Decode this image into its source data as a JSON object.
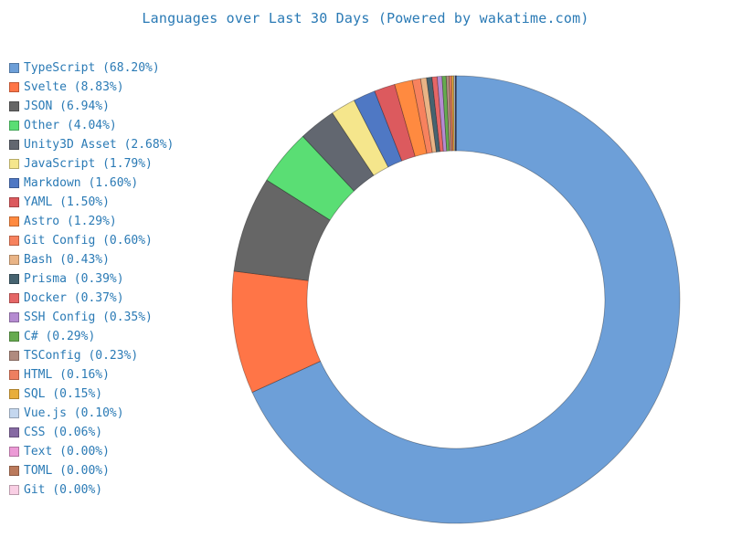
{
  "title": "Languages over Last 30 Days (Powered by wakatime.com)",
  "chart_data": {
    "type": "pie",
    "style": "donut",
    "legend_placement": "left",
    "slices": [
      {
        "label": "TypeScript (68.20%)",
        "name": "TypeScript",
        "value": 68.2,
        "color": "#6d9fd8"
      },
      {
        "label": "Svelte (8.83%)",
        "name": "Svelte",
        "value": 8.83,
        "color": "#ff7547"
      },
      {
        "label": "JSON (6.94%)",
        "name": "JSON",
        "value": 6.94,
        "color": "#666666"
      },
      {
        "label": "Other (4.04%)",
        "name": "Other",
        "value": 4.04,
        "color": "#5ade74"
      },
      {
        "label": "Unity3D Asset (2.68%)",
        "name": "Unity3D Asset",
        "value": 2.68,
        "color": "#626770"
      },
      {
        "label": "JavaScript (1.79%)",
        "name": "JavaScript",
        "value": 1.79,
        "color": "#f5e68c"
      },
      {
        "label": "Markdown (1.60%)",
        "name": "Markdown",
        "value": 1.6,
        "color": "#4f78c4"
      },
      {
        "label": "YAML (1.50%)",
        "name": "YAML",
        "value": 1.5,
        "color": "#dc5a5e"
      },
      {
        "label": "Astro (1.29%)",
        "name": "Astro",
        "value": 1.29,
        "color": "#ff8a40"
      },
      {
        "label": "Git Config (0.60%)",
        "name": "Git Config",
        "value": 0.6,
        "color": "#f7825e"
      },
      {
        "label": "Bash (0.43%)",
        "name": "Bash",
        "value": 0.43,
        "color": "#e9b486"
      },
      {
        "label": "Prisma (0.39%)",
        "name": "Prisma",
        "value": 0.39,
        "color": "#466370"
      },
      {
        "label": "Docker (0.37%)",
        "name": "Docker",
        "value": 0.37,
        "color": "#e56666"
      },
      {
        "label": "SSH Config (0.35%)",
        "name": "SSH Config",
        "value": 0.35,
        "color": "#b58bd1"
      },
      {
        "label": "C# (0.29%)",
        "name": "C#",
        "value": 0.29,
        "color": "#66ab4f"
      },
      {
        "label": "TSConfig (0.23%)",
        "name": "TSConfig",
        "value": 0.23,
        "color": "#b08b7f"
      },
      {
        "label": "HTML (0.16%)",
        "name": "HTML",
        "value": 0.16,
        "color": "#ee7f60"
      },
      {
        "label": "SQL (0.15%)",
        "name": "SQL",
        "value": 0.15,
        "color": "#e8ae3c"
      },
      {
        "label": "Vue.js (0.10%)",
        "name": "Vue.js",
        "value": 0.1,
        "color": "#c4d7ef"
      },
      {
        "label": "CSS (0.06%)",
        "name": "CSS",
        "value": 0.06,
        "color": "#866aa3"
      },
      {
        "label": "Text (0.00%)",
        "name": "Text",
        "value": 0.0,
        "color": "#ec9ad6"
      },
      {
        "label": "TOML (0.00%)",
        "name": "TOML",
        "value": 0.0,
        "color": "#bb7a5c"
      },
      {
        "label": "Git (0.00%)",
        "name": "Git",
        "value": 0.0,
        "color": "#f9cfe4"
      }
    ]
  }
}
